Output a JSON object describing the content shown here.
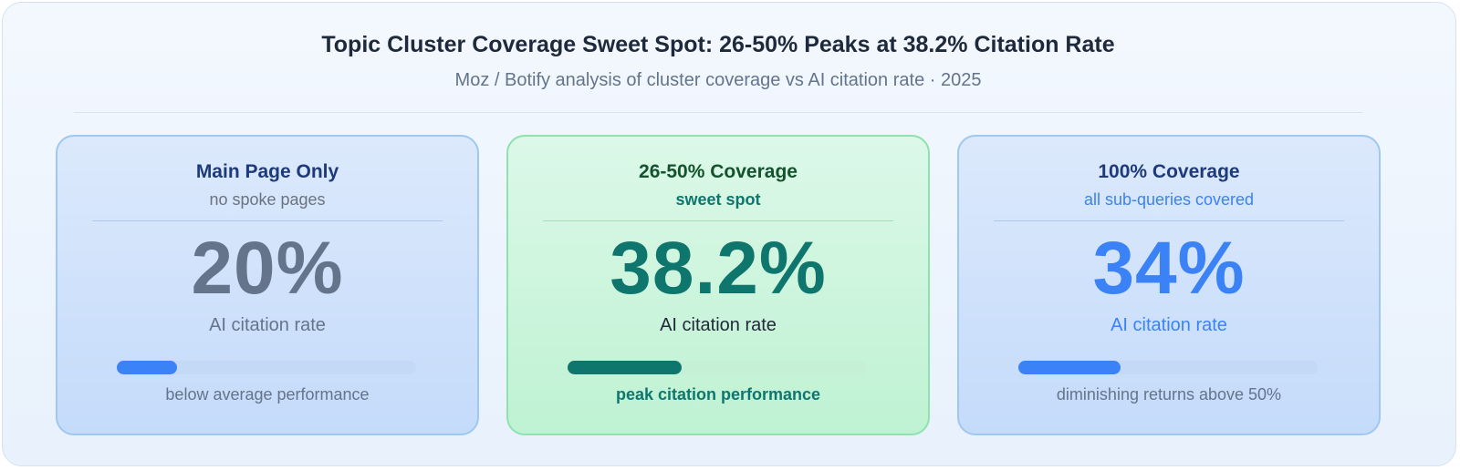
{
  "header": {
    "title": "Topic Cluster Coverage Sweet Spot: 26-50% Peaks at 38.2% Citation Rate",
    "subtitle": "Moz / Botify analysis of cluster coverage vs AI citation rate · 2025"
  },
  "cards": [
    {
      "title": "Main Page Only",
      "subtitle": "no spoke pages",
      "value": 20,
      "value_label": "20%",
      "label": "AI citation rate",
      "footer": "below average performance"
    },
    {
      "title": "26-50% Coverage",
      "subtitle": "sweet spot",
      "value": 38.2,
      "value_label": "38.2%",
      "label": "AI citation rate",
      "footer": "peak citation performance"
    },
    {
      "title": "100% Coverage",
      "subtitle": "all sub-queries covered",
      "value": 34,
      "value_label": "34%",
      "label": "AI citation rate",
      "footer": "diminishing returns above 50%"
    }
  ]
}
